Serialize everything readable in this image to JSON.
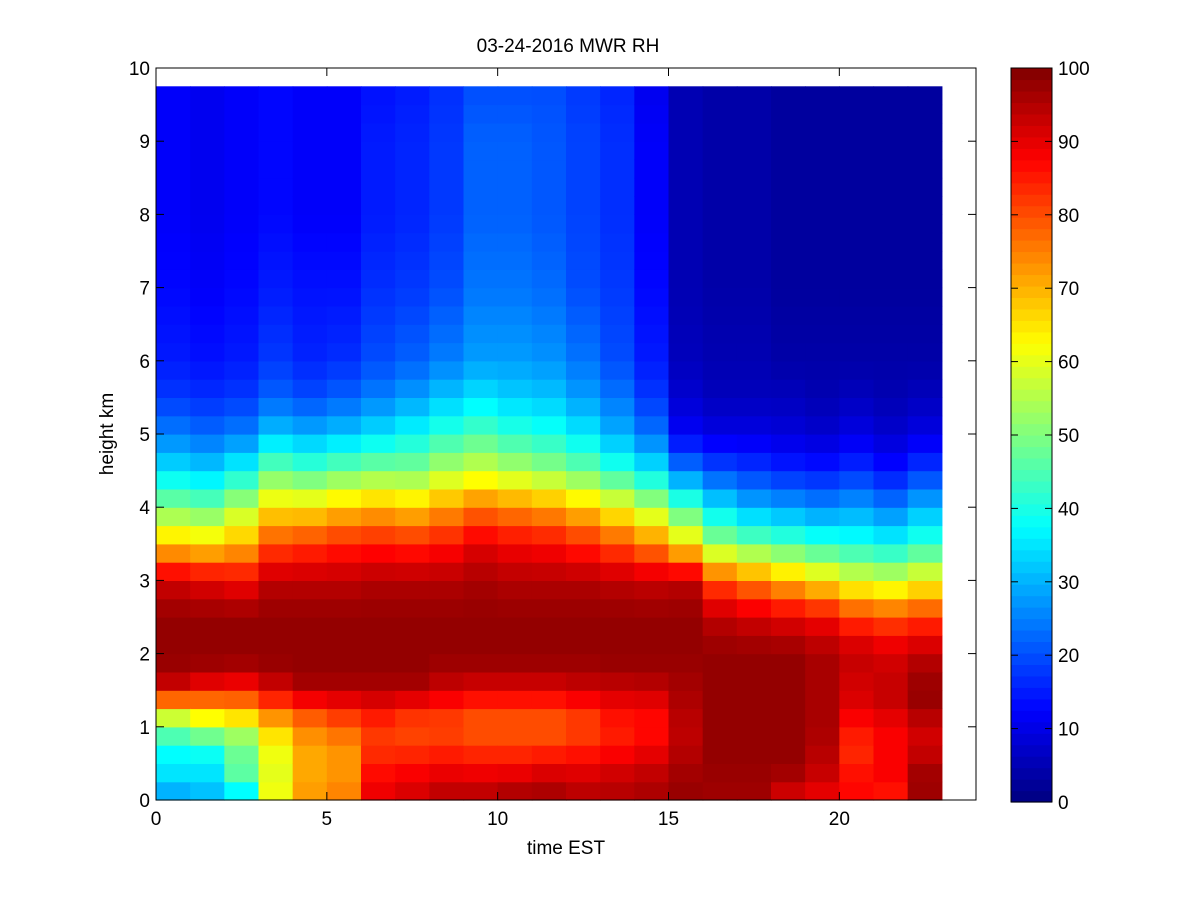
{
  "chart_data": {
    "type": "heatmap",
    "title": "03-24-2016 MWR RH",
    "xlabel": "time EST",
    "ylabel": "height km",
    "xlim": [
      0,
      24
    ],
    "ylim": [
      0,
      10
    ],
    "x_ticks": [
      0,
      5,
      10,
      15,
      20
    ],
    "y_ticks": [
      0,
      1,
      2,
      3,
      4,
      5,
      6,
      7,
      8,
      9,
      10
    ],
    "colorbar": {
      "min": 0,
      "max": 100,
      "ticks": [
        0,
        10,
        20,
        30,
        40,
        50,
        60,
        70,
        80,
        90,
        100
      ],
      "colormap": "jet"
    },
    "time_bin_width_hours": 1,
    "x_centers": [
      0.5,
      1.5,
      2.5,
      3.5,
      4.5,
      5.5,
      6.5,
      7.5,
      8.5,
      9.5,
      10.5,
      11.5,
      12.5,
      13.5,
      14.5,
      15.5,
      16.5,
      17.5,
      18.5,
      19.5,
      20.5,
      21.5,
      22.5
    ],
    "profile_heights_km": [
      0,
      0.25,
      0.5,
      0.75,
      1.0,
      1.25,
      1.5,
      1.75,
      2.0,
      2.5,
      3.0,
      3.5,
      4.0,
      4.5,
      5.0,
      5.5,
      6.0,
      7.0,
      8.0,
      9.0,
      9.75
    ],
    "rh_profiles_percent": [
      [
        25,
        35,
        35,
        40,
        50,
        65,
        90,
        97,
        98,
        98,
        92,
        68,
        50,
        35,
        25,
        18,
        15,
        13,
        12,
        12,
        12
      ],
      [
        28,
        35,
        35,
        42,
        55,
        70,
        85,
        96,
        98,
        98,
        90,
        66,
        48,
        33,
        23,
        17,
        14,
        12,
        11,
        11,
        11
      ],
      [
        30,
        45,
        48,
        48,
        58,
        72,
        84,
        95,
        98,
        98,
        88,
        70,
        55,
        38,
        25,
        18,
        15,
        13,
        12,
        12,
        12
      ],
      [
        62,
        60,
        60,
        62,
        68,
        78,
        90,
        97,
        98,
        98,
        94,
        80,
        65,
        48,
        32,
        22,
        18,
        15,
        13,
        13,
        13
      ],
      [
        72,
        72,
        70,
        72,
        75,
        82,
        95,
        98,
        98,
        98,
        94,
        82,
        65,
        45,
        30,
        20,
        16,
        14,
        12,
        12,
        12
      ],
      [
        75,
        74,
        72,
        74,
        78,
        85,
        95,
        98,
        98,
        98,
        94,
        84,
        68,
        48,
        32,
        22,
        17,
        14,
        12,
        12,
        12
      ],
      [
        90,
        88,
        85,
        82,
        82,
        88,
        95,
        98,
        98,
        98,
        95,
        85,
        70,
        50,
        35,
        25,
        20,
        17,
        15,
        15,
        14
      ],
      [
        92,
        90,
        86,
        82,
        80,
        85,
        95,
        98,
        98,
        98,
        95,
        84,
        68,
        50,
        38,
        28,
        22,
        18,
        16,
        16,
        15
      ],
      [
        95,
        92,
        87,
        83,
        80,
        84,
        92,
        96,
        98,
        98,
        95,
        86,
        72,
        55,
        42,
        32,
        25,
        20,
        18,
        18,
        17
      ],
      [
        95,
        92,
        86,
        82,
        78,
        82,
        90,
        96,
        98,
        98,
        96,
        90,
        76,
        58,
        45,
        35,
        28,
        24,
        22,
        22,
        20
      ],
      [
        97,
        93,
        86,
        82,
        78,
        82,
        90,
        96,
        98,
        98,
        95,
        88,
        74,
        55,
        42,
        33,
        28,
        24,
        22,
        22,
        20
      ],
      [
        97,
        94,
        88,
        82,
        78,
        82,
        90,
        96,
        98,
        98,
        95,
        87,
        72,
        52,
        40,
        32,
        27,
        23,
        21,
        21,
        20
      ],
      [
        95,
        93,
        88,
        84,
        80,
        84,
        92,
        96,
        98,
        98,
        95,
        84,
        68,
        48,
        36,
        28,
        24,
        20,
        19,
        19,
        18
      ],
      [
        95,
        94,
        90,
        86,
        84,
        88,
        92,
        97,
        98,
        98,
        94,
        80,
        62,
        42,
        30,
        24,
        20,
        18,
        17,
        17,
        16
      ],
      [
        96,
        95,
        92,
        88,
        86,
        88,
        93,
        97,
        98,
        98,
        93,
        75,
        55,
        36,
        24,
        18,
        15,
        13,
        12,
        12,
        11
      ],
      [
        98,
        97,
        96,
        94,
        94,
        95,
        96,
        97,
        98,
        98,
        94,
        65,
        45,
        25,
        12,
        8,
        6,
        5,
        5,
        5,
        5
      ],
      [
        97,
        97,
        98,
        98,
        98,
        98,
        98,
        98,
        98,
        94,
        80,
        52,
        35,
        20,
        10,
        6,
        5,
        4,
        4,
        4,
        4
      ],
      [
        97,
        97,
        98,
        98,
        98,
        98,
        98,
        98,
        98,
        92,
        75,
        48,
        30,
        18,
        10,
        6,
        5,
        4,
        4,
        4,
        4
      ],
      [
        90,
        95,
        98,
        98,
        98,
        98,
        98,
        98,
        98,
        90,
        70,
        45,
        28,
        16,
        9,
        6,
        4,
        3,
        3,
        3,
        3
      ],
      [
        88,
        92,
        94,
        95,
        96,
        96,
        96,
        96,
        96,
        88,
        65,
        42,
        26,
        15,
        8,
        5,
        4,
        3,
        3,
        3,
        3
      ],
      [
        86,
        88,
        84,
        84,
        86,
        90,
        92,
        92,
        94,
        82,
        60,
        40,
        28,
        17,
        10,
        6,
        4,
        3,
        3,
        3,
        3
      ],
      [
        84,
        88,
        88,
        88,
        88,
        92,
        94,
        92,
        92,
        80,
        58,
        38,
        25,
        14,
        8,
        5,
        4,
        3,
        3,
        3,
        3
      ],
      [
        96,
        98,
        95,
        92,
        92,
        97,
        98,
        96,
        94,
        82,
        62,
        42,
        30,
        18,
        10,
        6,
        4,
        3,
        3,
        3,
        3
      ]
    ]
  }
}
